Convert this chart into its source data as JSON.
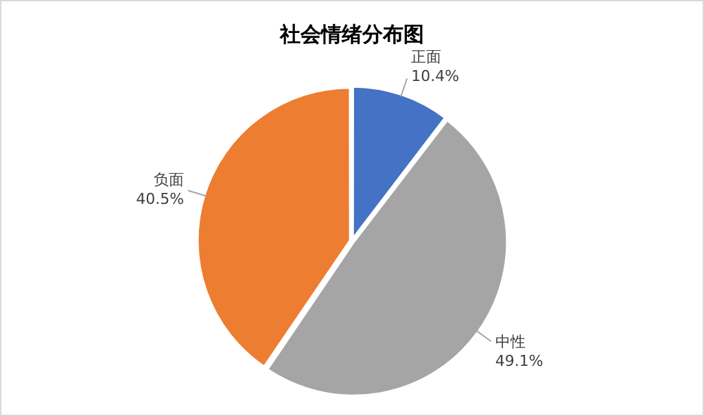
{
  "chart_data": {
    "type": "pie",
    "title": "社会情绪分布图",
    "categories": [
      "正面",
      "中性",
      "负面"
    ],
    "values": [
      10.4,
      49.1,
      40.5
    ],
    "colors": [
      "#4472c4",
      "#a5a5a5",
      "#ed7d31"
    ],
    "value_labels": [
      "10.4%",
      "49.1%",
      "40.5%"
    ],
    "legend": false
  }
}
